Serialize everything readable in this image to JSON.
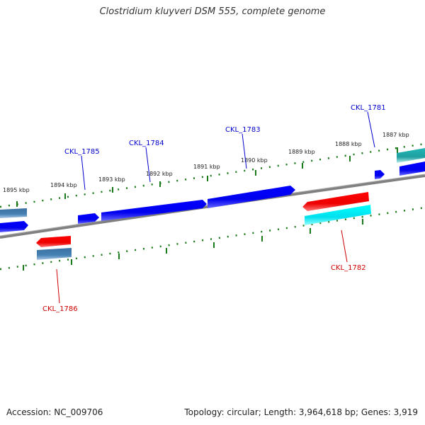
{
  "title": "Clostridium kluyveri DSM 555, complete genome",
  "footer": {
    "accession": "Accession: NC_009706",
    "topology": "Topology: circular; Length: 3,964,618 bp; Genes: 3,919"
  },
  "colors": {
    "forward_gene": "#0000ee",
    "reverse_gene": "#ee0000",
    "cyan_feature": "#00e5ee",
    "steelblue_feature": "#4682b4",
    "backbone": "#808080",
    "ticks": "#1a7a1a",
    "forward_label": "#0000cc",
    "reverse_label": "#cc0000"
  },
  "scale_labels": [
    "1895 kbp",
    "1894 kbp",
    "1893 kbp",
    "1892 kbp",
    "1891 kbp",
    "1890 kbp",
    "1889 kbp",
    "1888 kbp",
    "1887 kbp"
  ],
  "gene_labels": {
    "forward": [
      "CKL_1785",
      "CKL_1784",
      "CKL_1783",
      "CKL_1781"
    ],
    "reverse": [
      "CKL_1786",
      "CKL_1782"
    ]
  }
}
